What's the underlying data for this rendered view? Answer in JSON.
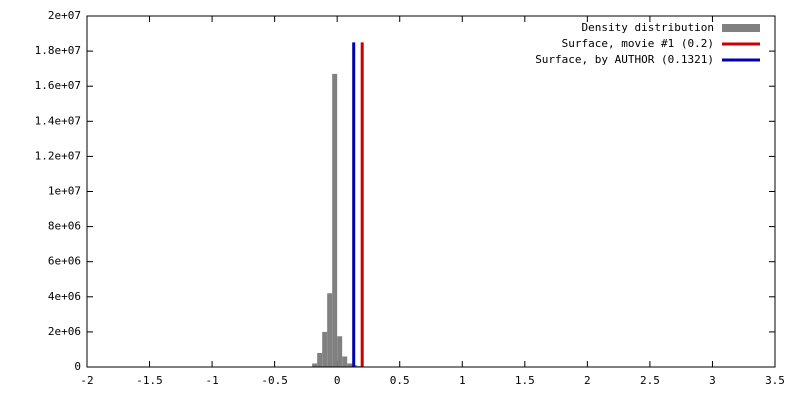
{
  "chart_data": {
    "type": "histogram",
    "bins": [
      -0.2,
      -0.16,
      -0.12,
      -0.08,
      -0.04,
      0,
      0.04,
      0.08,
      0.12,
      0.16,
      0.2,
      0.24,
      0.28
    ],
    "counts": [
      200000,
      800000,
      2000000,
      4200000,
      16700000,
      1750000,
      600000,
      200000,
      100000,
      50000,
      30000,
      20000
    ],
    "name": "Density distribution",
    "color": "#808080",
    "vlines": [
      {
        "name": "Surface, movie #1 (0.2)",
        "color": "#cc0000",
        "x": 0.2,
        "height": 18500000
      },
      {
        "name": "Surface, by AUTHOR (0.1321)",
        "color": "#0000b0",
        "x": 0.1321,
        "height": 18500000
      }
    ],
    "xlim": [
      -2,
      3.5
    ],
    "xticks": [
      -2,
      -1.5,
      -1,
      -0.5,
      0,
      0.5,
      1,
      1.5,
      2,
      2.5,
      3,
      3.5
    ],
    "ylim": [
      0,
      20000000
    ],
    "yticks": [
      0,
      {
        "value": 2000000,
        "label": "2e+06"
      },
      {
        "value": 4000000,
        "label": "4e+06"
      },
      {
        "value": 6000000,
        "label": "6e+06"
      },
      {
        "value": 8000000,
        "label": "8e+06"
      },
      {
        "value": 10000000,
        "label": "1e+07"
      },
      {
        "value": 12000000,
        "label": "1.2e+07"
      },
      {
        "value": 14000000,
        "label": "1.4e+07"
      },
      {
        "value": 16000000,
        "label": "1.6e+07"
      },
      {
        "value": 18000000,
        "label": "1.8e+07"
      },
      {
        "value": 20000000,
        "label": "2e+07"
      }
    ],
    "legend": "top-right"
  }
}
